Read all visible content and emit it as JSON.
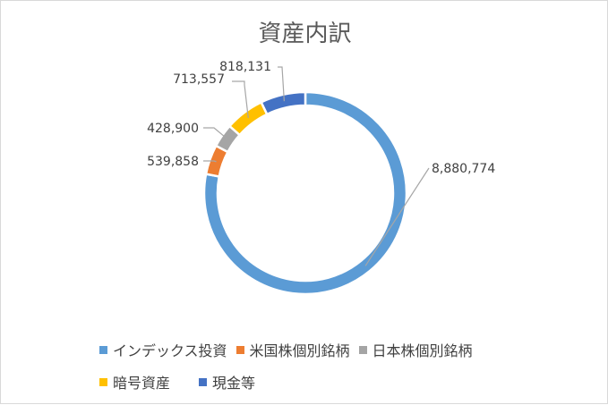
{
  "chart_data": {
    "type": "pie",
    "title": "資産内訳",
    "donut": true,
    "categories": [
      "インデックス投資",
      "米国株個別銘柄",
      "日本株個別銘柄",
      "暗号資産",
      "現金等"
    ],
    "values": [
      8880774,
      539858,
      428900,
      713557,
      818131
    ],
    "value_labels": [
      "8,880,774",
      "539,858",
      "428,900",
      "713,557",
      "818,131"
    ],
    "colors": [
      "#5b9bd5",
      "#ed7d31",
      "#a5a5a5",
      "#ffc000",
      "#4472c4"
    ],
    "legend_position": "bottom"
  }
}
